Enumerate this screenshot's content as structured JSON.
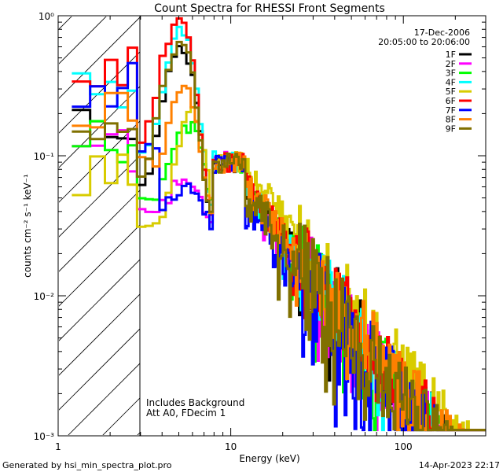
{
  "chart_data": {
    "type": "line",
    "title": "Count Spectra for RHESSI Front Segments",
    "xlabel": "Energy (keV)",
    "ylabel": "counts cm⁻² s⁻¹ keV⁻¹",
    "xscale": "log",
    "yscale": "log",
    "xlim": [
      1.0,
      300.0
    ],
    "ylim": [
      0.001,
      1.0
    ],
    "x_ticks": [
      {
        "value": 1,
        "label": "1"
      },
      {
        "value": 10,
        "label": "10"
      },
      {
        "value": 100,
        "label": "100"
      }
    ],
    "y_ticks": [
      {
        "value": 1.0,
        "label": "10⁰"
      },
      {
        "value": 0.1,
        "label": "10⁻¹"
      },
      {
        "value": 0.01,
        "label": "10⁻²"
      },
      {
        "value": 0.001,
        "label": "10⁻³"
      }
    ],
    "shaded_region": {
      "x_min": 1.0,
      "x_max": 3.0,
      "pattern": "diagonal-hatch"
    },
    "date": "17-Dec-2006",
    "time_range": "20:05:00 to 20:06:00",
    "annotations": [
      "Includes Background",
      "Att A0, FDecim 1"
    ],
    "series": [
      {
        "name": "1F",
        "color": "#000000"
      },
      {
        "name": "2F",
        "color": "#ff00ff"
      },
      {
        "name": "3F",
        "color": "#00ff00"
      },
      {
        "name": "4F",
        "color": "#00ffff"
      },
      {
        "name": "5F",
        "color": "#d8cc00"
      },
      {
        "name": "6F",
        "color": "#ff0000"
      },
      {
        "name": "7F",
        "color": "#0000ff"
      },
      {
        "name": "8F",
        "color": "#ff8000"
      },
      {
        "name": "9F",
        "color": "#807000"
      }
    ]
  },
  "footer": {
    "generated_by": "Generated by hsi_min_spectra_plot.pro",
    "timestamp": "14-Apr-2023 22:17"
  }
}
